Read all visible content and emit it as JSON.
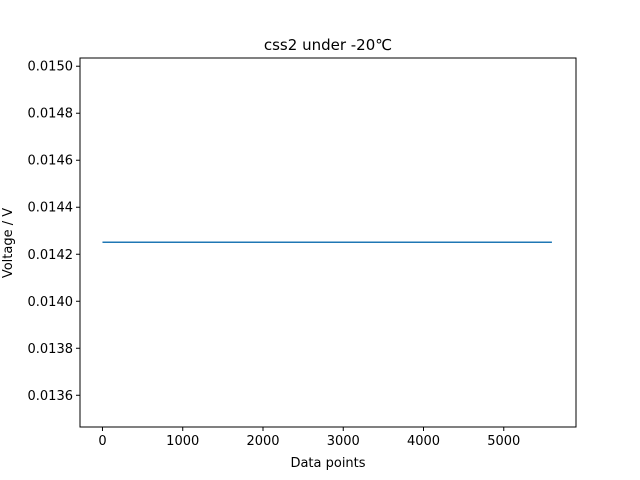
{
  "chart_data": {
    "type": "line",
    "title": "css2 under -20℃",
    "xlabel": "Data points",
    "ylabel": "Voltage / V",
    "xlim": [
      -280,
      5900
    ],
    "ylim": [
      0.013465,
      0.015035
    ],
    "x_ticks": [
      0,
      1000,
      2000,
      3000,
      4000,
      5000
    ],
    "x_tick_labels": [
      "0",
      "1000",
      "2000",
      "3000",
      "4000",
      "5000"
    ],
    "y_ticks": [
      0.0136,
      0.0138,
      0.014,
      0.0142,
      0.0144,
      0.0146,
      0.0148,
      0.015
    ],
    "y_tick_labels": [
      "0.0136",
      "0.0138",
      "0.0140",
      "0.0142",
      "0.0144",
      "0.0146",
      "0.0148",
      "0.0150"
    ],
    "grid": false,
    "series": [
      {
        "color": "#1f77b4",
        "x": [
          0,
          5600
        ],
        "y": [
          0.014251,
          0.014251
        ]
      }
    ]
  }
}
